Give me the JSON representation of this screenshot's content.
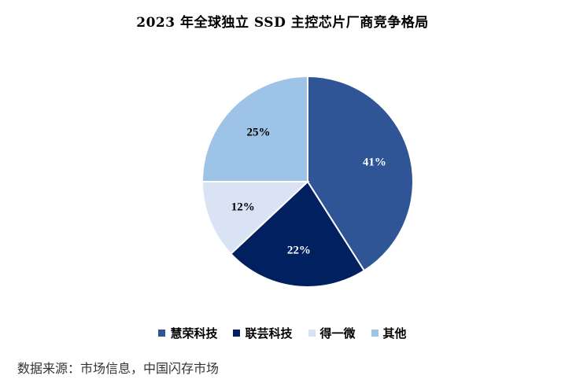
{
  "chart_data": {
    "type": "pie",
    "title": "2023 年全球独立 SSD 主控芯片厂商竞争格局",
    "categories": [
      "慧荣科技",
      "联芸科技",
      "得一微",
      "其他"
    ],
    "values": [
      41,
      22,
      12,
      25
    ],
    "labels": [
      "41%",
      "22%",
      "12%",
      "25%"
    ],
    "colors": [
      "#2f5597",
      "#002060",
      "#dae3f3",
      "#9dc3e6"
    ],
    "label_colors": [
      "#ffffff",
      "#ffffff",
      "#000000",
      "#000000"
    ],
    "legend_position": "bottom"
  },
  "source_note": "数据来源：市场信息，中国闪存市场"
}
